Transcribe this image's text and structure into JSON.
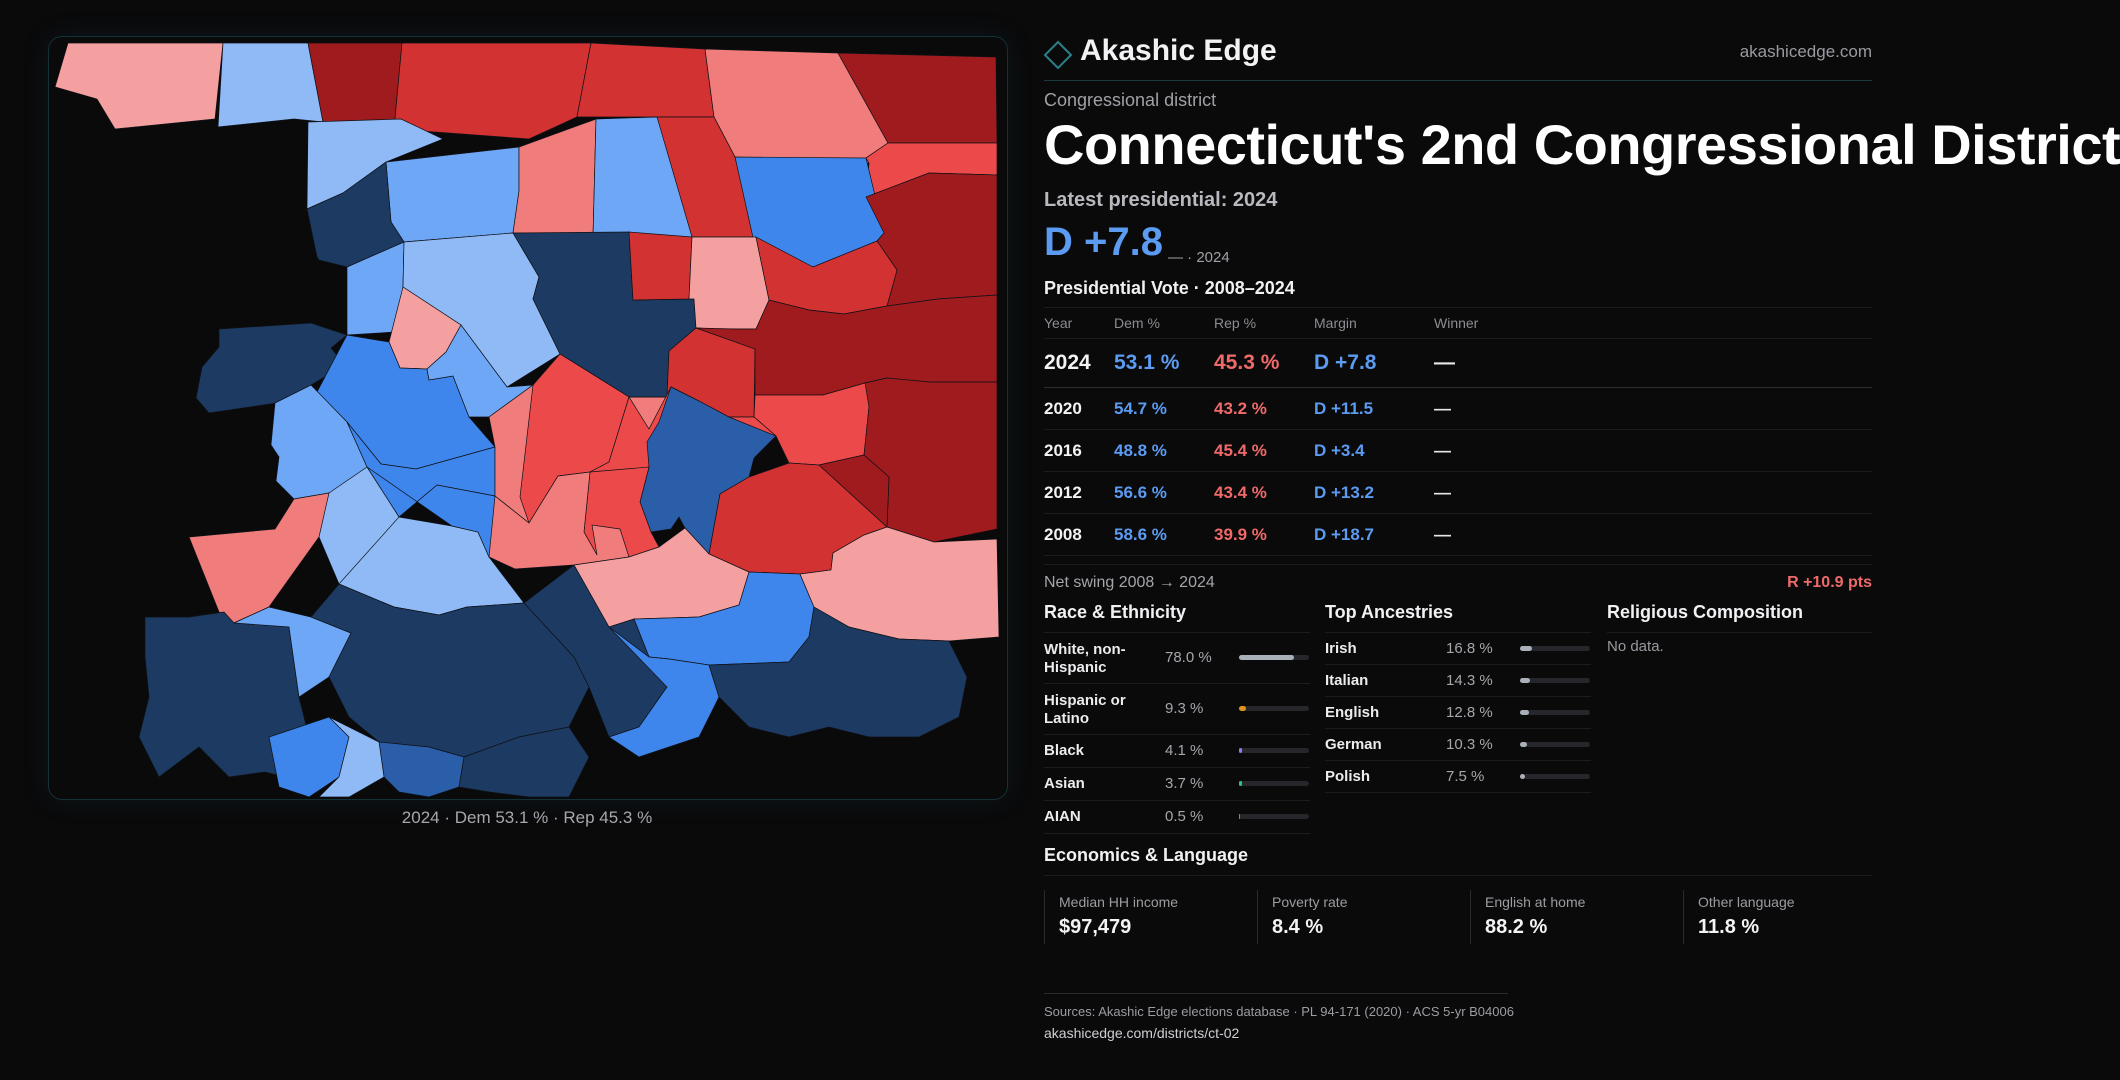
{
  "brand": {
    "name": "Akashic Edge",
    "url": "akashicedge.com"
  },
  "district": {
    "kicker": "Congressional district",
    "title": "Connecticut's 2nd Congressional District",
    "latest_label": "Latest presidential: 2024",
    "latest_margin": "D +7.8",
    "latest_sub": "— · 2024"
  },
  "map": {
    "caption": "2024 · Dem 53.1 % · Rep 45.3 %",
    "colors": {
      "dem_strong": "#1c3a62",
      "dem_mid": "#2b5ea8",
      "dem_base": "#3f86ec",
      "dem_light": "#6ea7f5",
      "dem_pale": "#8fbaf6",
      "rep_pale": "#f5a0a0",
      "rep_light": "#f07c7c",
      "rep_base": "#ec4a4a",
      "rep_mid": "#d33232",
      "rep_strong": "#9f1b1e"
    }
  },
  "presidential": {
    "title": "Presidential Vote · 2008–2024",
    "headers": {
      "year": "Year",
      "dem": "Dem %",
      "rep": "Rep %",
      "margin": "Margin",
      "winner": "Winner"
    },
    "rows": [
      {
        "year": "2024",
        "dem": "53.1 %",
        "rep": "45.3 %",
        "margin": "D +7.8",
        "winner": "—"
      },
      {
        "year": "2020",
        "dem": "54.7 %",
        "rep": "43.2 %",
        "margin": "D +11.5",
        "winner": "—"
      },
      {
        "year": "2016",
        "dem": "48.8 %",
        "rep": "45.4 %",
        "margin": "D +3.4",
        "winner": "—"
      },
      {
        "year": "2012",
        "dem": "56.6 %",
        "rep": "43.4 %",
        "margin": "D +13.2",
        "winner": "—"
      },
      {
        "year": "2008",
        "dem": "58.6 %",
        "rep": "39.9 %",
        "margin": "D +18.7",
        "winner": "—"
      }
    ],
    "net_swing_label": "Net swing 2008 → 2024",
    "net_swing_value": "R +10.9 pts"
  },
  "race": {
    "title": "Race & Ethnicity",
    "items": [
      {
        "label": "White, non-Hispanic",
        "value": "78.0 %",
        "fraction": 0.78,
        "color": "#aab0ba"
      },
      {
        "label": "Hispanic or Latino",
        "value": "9.3 %",
        "fraction": 0.093,
        "color": "#e0921e"
      },
      {
        "label": "Black",
        "value": "4.1 %",
        "fraction": 0.041,
        "color": "#8a7ee8"
      },
      {
        "label": "Asian",
        "value": "3.7 %",
        "fraction": 0.037,
        "color": "#33c28a"
      },
      {
        "label": "AIAN",
        "value": "0.5 %",
        "fraction": 0.005,
        "color": "#d2703a"
      }
    ]
  },
  "ancestries": {
    "title": "Top Ancestries",
    "items": [
      {
        "label": "Irish",
        "value": "16.8 %",
        "fraction": 0.168
      },
      {
        "label": "Italian",
        "value": "14.3 %",
        "fraction": 0.143
      },
      {
        "label": "English",
        "value": "12.8 %",
        "fraction": 0.128
      },
      {
        "label": "German",
        "value": "10.3 %",
        "fraction": 0.103
      },
      {
        "label": "Polish",
        "value": "7.5 %",
        "fraction": 0.075
      }
    ]
  },
  "religion": {
    "title": "Religious Composition",
    "empty": "No data."
  },
  "economics": {
    "title": "Economics & Language",
    "cards": [
      {
        "label": "Median HH income",
        "value": "$97,479"
      },
      {
        "label": "Poverty rate",
        "value": "8.4 %"
      },
      {
        "label": "English at home",
        "value": "88.2 %"
      },
      {
        "label": "Other language",
        "value": "11.8 %"
      }
    ]
  },
  "sources": {
    "text": "Sources: Akashic Edge elections database · PL 94-171 (2020) · ACS 5-yr B04006",
    "link": "akashicedge.com/districts/ct-02"
  }
}
